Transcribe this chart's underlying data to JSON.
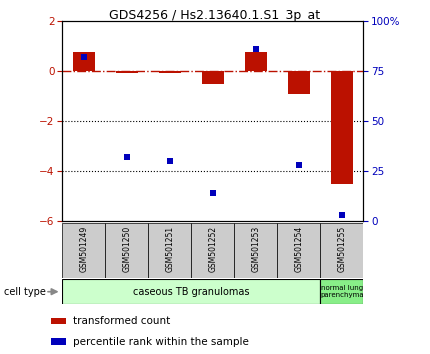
{
  "title": "GDS4256 / Hs2.13640.1.S1_3p_at",
  "samples": [
    "GSM501249",
    "GSM501250",
    "GSM501251",
    "GSM501252",
    "GSM501253",
    "GSM501254",
    "GSM501255"
  ],
  "transformed_count": [
    0.75,
    -0.08,
    -0.08,
    -0.5,
    0.75,
    -0.9,
    -4.5
  ],
  "percentile_rank": [
    82,
    32,
    30,
    14,
    86,
    28,
    3
  ],
  "left_ylim": [
    -6,
    2
  ],
  "right_ylim": [
    0,
    100
  ],
  "left_yticks": [
    -6,
    -4,
    -2,
    0,
    2
  ],
  "right_yticks": [
    0,
    25,
    50,
    75,
    100
  ],
  "right_yticklabels": [
    "0",
    "25",
    "50",
    "75",
    "100%"
  ],
  "dotted_lines": [
    -2,
    -4
  ],
  "bar_color": "#bb1100",
  "scatter_color": "#0000bb",
  "group1_label": "caseous TB granulomas",
  "group2_label": "normal lung\nparenchyma",
  "cell_type_label": "cell type",
  "legend_items": [
    "transformed count",
    "percentile rank within the sample"
  ],
  "legend_colors": [
    "#bb1100",
    "#0000bb"
  ],
  "group1_bg": "#ccffcc",
  "group2_bg": "#88ee88",
  "sample_box_bg": "#cccccc",
  "bar_width": 0.5,
  "scatter_marker_size": 25
}
